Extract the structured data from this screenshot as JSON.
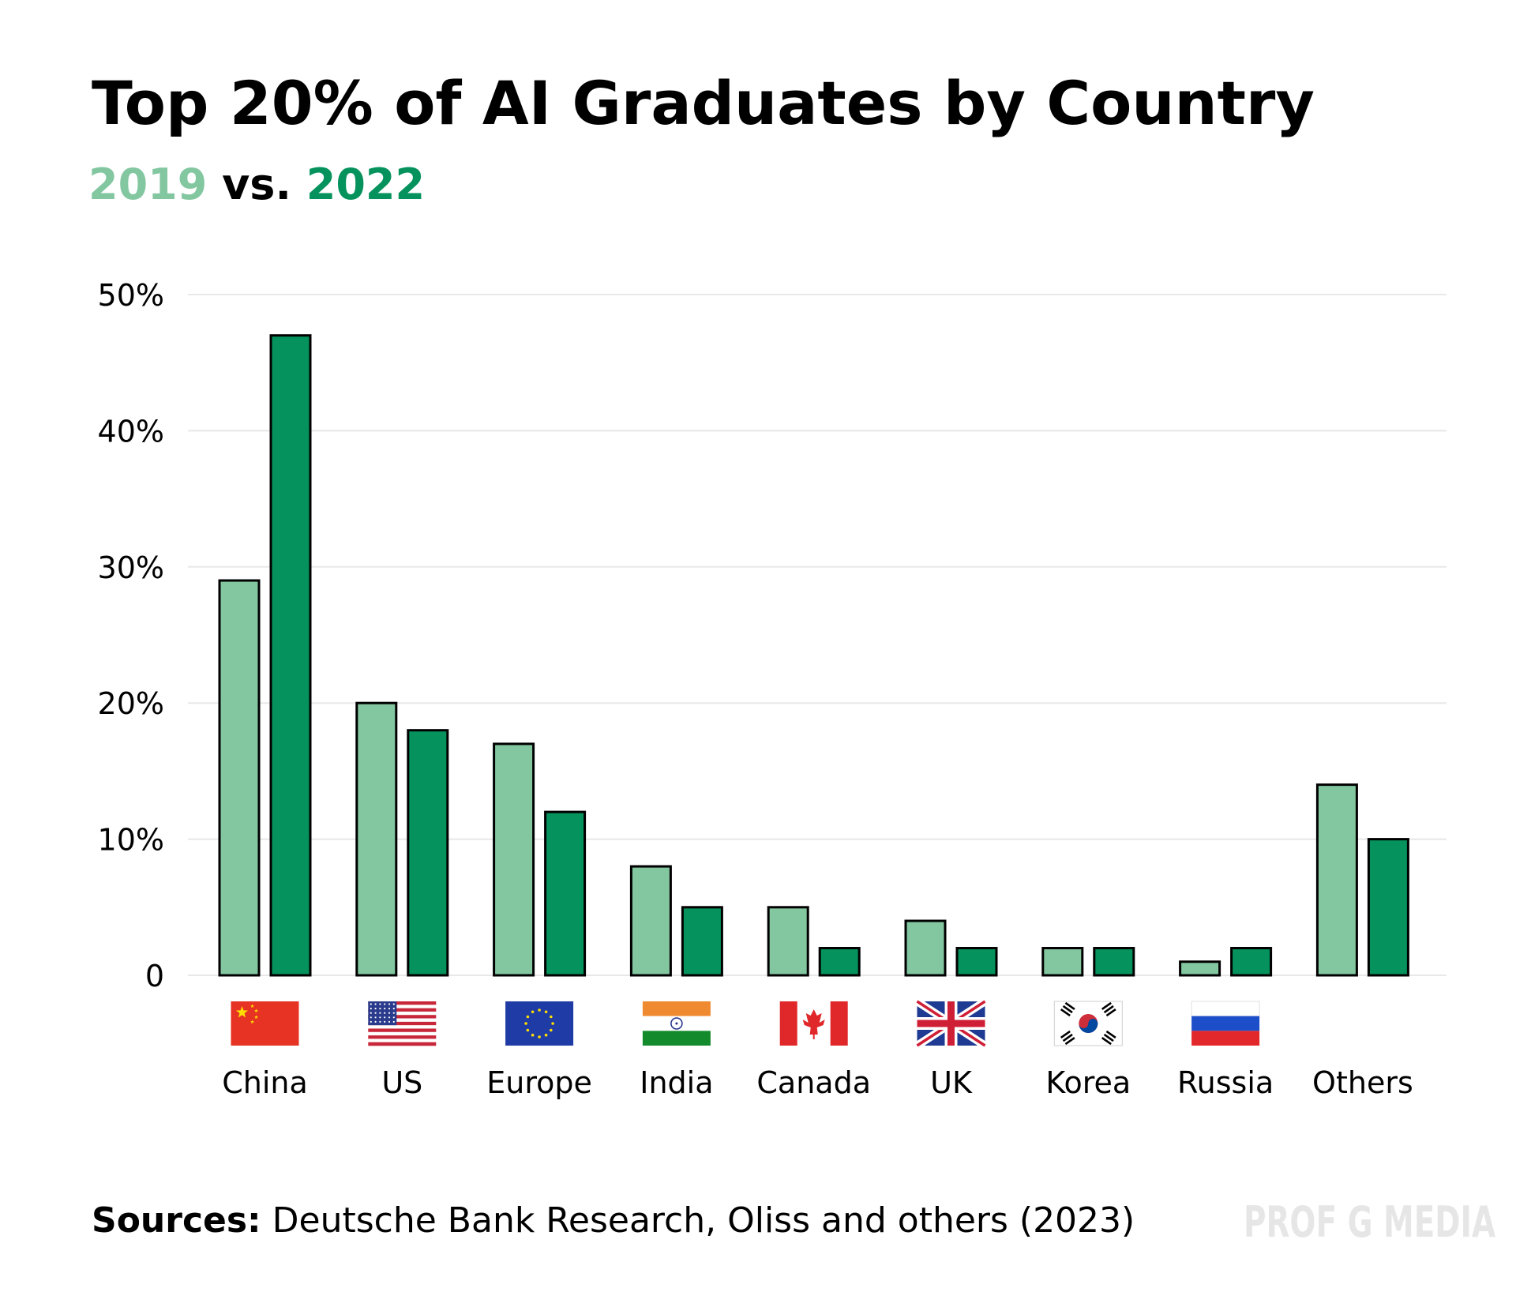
{
  "title": "Top 20% of AI Graduates by Country",
  "subtitle": {
    "year_a": "2019",
    "sep": " vs. ",
    "year_b": "2022"
  },
  "colors": {
    "series_2019": "#83c7a1",
    "series_2022": "#05925c",
    "grid": "#e8e8e8",
    "bar_stroke": "#000000"
  },
  "chart_data": {
    "type": "bar",
    "categories": [
      "China",
      "US",
      "Europe",
      "India",
      "Canada",
      "UK",
      "Korea",
      "Russia",
      "Others"
    ],
    "flag_icons": [
      "china-flag-icon",
      "us-flag-icon",
      "eu-flag-icon",
      "india-flag-icon",
      "canada-flag-icon",
      "uk-flag-icon",
      "korea-flag-icon",
      "russia-flag-icon",
      ""
    ],
    "series": [
      {
        "name": "2019",
        "values": [
          29,
          20,
          17,
          8,
          5,
          4,
          2,
          1,
          14
        ]
      },
      {
        "name": "2022",
        "values": [
          47,
          18,
          12,
          5,
          2,
          2,
          2,
          2,
          10
        ]
      }
    ],
    "y_ticks": [
      "0",
      "10%",
      "20%",
      "30%",
      "40%",
      "50%"
    ],
    "ylim": [
      0,
      50
    ],
    "grid": true,
    "xlabel": "",
    "ylabel": ""
  },
  "sources": {
    "label": "Sources:",
    "text": " Deutsche Bank Research, Oliss and others (2023)"
  },
  "watermark": "PROF G MEDIA"
}
